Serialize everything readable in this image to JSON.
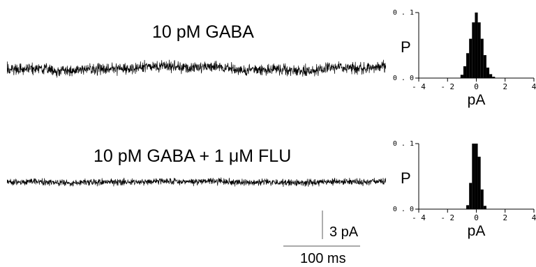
{
  "panels": [
    {
      "label": "10 pM GABA"
    },
    {
      "label": "10 pM GABA + 1 μM FLU"
    }
  ],
  "scale_bar": {
    "amplitude_label": "3 pA",
    "time_label": "100 ms"
  },
  "chart_data": [
    {
      "type": "bar",
      "ylabel": "P",
      "xlabel": "pA",
      "xlim": [
        -4,
        4
      ],
      "ylim": [
        0,
        0.1
      ],
      "xticks": [
        "- 4",
        "- 2",
        "0",
        "2",
        "4"
      ],
      "yticks": [
        "0 . 0",
        "0 . 1"
      ],
      "bar_color": "#000000",
      "x": [
        -1.0,
        -0.8,
        -0.6,
        -0.4,
        -0.2,
        0.0,
        0.2,
        0.4,
        0.6,
        0.8,
        1.0,
        1.2
      ],
      "values": [
        0.005,
        0.018,
        0.038,
        0.06,
        0.085,
        0.1,
        0.085,
        0.06,
        0.035,
        0.016,
        0.006,
        0.002
      ]
    },
    {
      "type": "bar",
      "ylabel": "P",
      "xlabel": "pA",
      "xlim": [
        -4,
        4
      ],
      "ylim": [
        0,
        0.1
      ],
      "xticks": [
        "- 4",
        "- 2",
        "0",
        "2",
        "4"
      ],
      "yticks": [
        "0 . 0",
        "0 . 1"
      ],
      "bar_color": "#000000",
      "x": [
        -0.6,
        -0.4,
        -0.2,
        0.0,
        0.2,
        0.4,
        0.6
      ],
      "values": [
        0.006,
        0.04,
        0.1,
        0.1,
        0.08,
        0.03,
        0.005
      ]
    }
  ]
}
